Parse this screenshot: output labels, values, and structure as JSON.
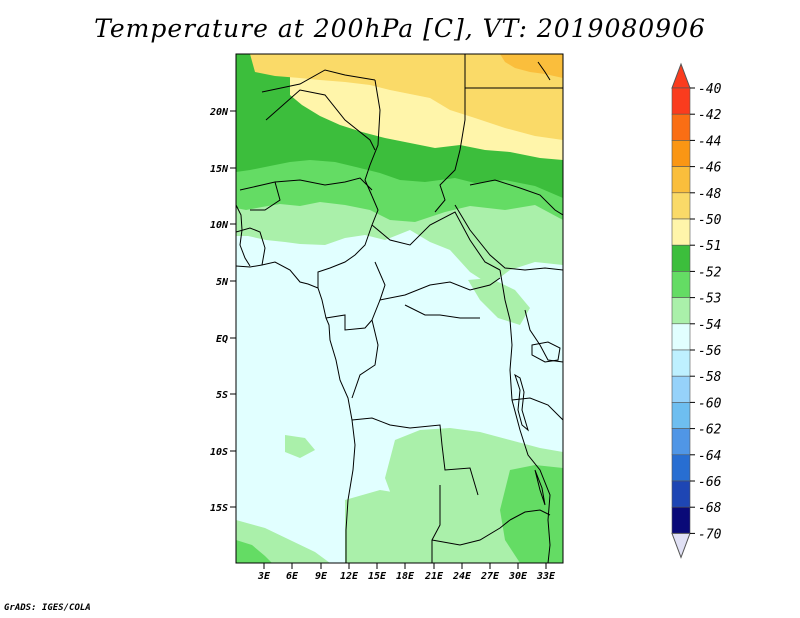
{
  "title": "Temperature at 200hPa [C], VT: 2019080906",
  "credit": "GrADS: IGES/COLA",
  "map": {
    "lat_labels": [
      "20N",
      "15N",
      "10N",
      "5N",
      "EQ",
      "5S",
      "10S",
      "15S"
    ],
    "lon_labels": [
      "3E",
      "6E",
      "9E",
      "12E",
      "15E",
      "18E",
      "21E",
      "24E",
      "27E",
      "30E",
      "33E"
    ]
  },
  "colorbar": {
    "levels": [
      "-40",
      "-42",
      "-44",
      "-46",
      "-48",
      "-50",
      "-51",
      "-52",
      "-53",
      "-54",
      "-56",
      "-58",
      "-60",
      "-62",
      "-64",
      "-66",
      "-68",
      "-70"
    ],
    "colors": [
      "#fa3c1e",
      "#fa3c1e",
      "#fa6e14",
      "#fa9614",
      "#fabe3c",
      "#fada68",
      "#fff5aa",
      "#3cbe3c",
      "#64dc64",
      "#aaf0aa",
      "#e1ffff",
      "#bef0ff",
      "#96d2fa",
      "#6ebef0",
      "#5096e6",
      "#286ed2",
      "#1e46b4",
      "#0a0a78",
      "#e1e1f5"
    ],
    "shade_colors": {
      "orange": "#fabe3c",
      "yellow": "#fada68",
      "pale_yellow": "#fff5aa",
      "green": "#3cbe3c",
      "mid_green": "#64dc64",
      "light_green": "#aaf0aa",
      "cyan": "#e1ffff"
    }
  }
}
